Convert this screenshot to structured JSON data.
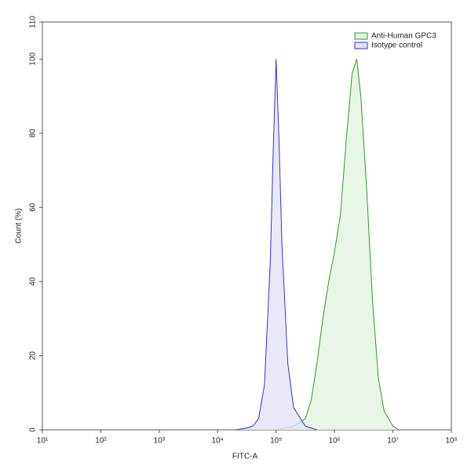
{
  "chart_data": {
    "type": "area",
    "xlabel": "FITC-A",
    "ylabel": "Count (%)",
    "xscale": "log",
    "xlim": [
      10,
      100000000
    ],
    "xticks": [
      {
        "value": 10,
        "label": "10¹"
      },
      {
        "value": 100,
        "label": "10²"
      },
      {
        "value": 1000,
        "label": "10³"
      },
      {
        "value": 10000,
        "label": "10⁴"
      },
      {
        "value": 100000,
        "label": "10⁵"
      },
      {
        "value": 1000000,
        "label": "10⁶"
      },
      {
        "value": 10000000,
        "label": "10⁷"
      },
      {
        "value": 100000000,
        "label": "10⁸"
      }
    ],
    "ylim": [
      0,
      110
    ],
    "yticks": [
      0,
      20,
      40,
      60,
      80,
      100,
      110
    ],
    "legend": "upper right",
    "series": [
      {
        "name": "Anti-Human GPC3",
        "color": "#2e9a2e",
        "fill": "#e3f3e1",
        "x": [
          100000,
          199526,
          316228,
          398107,
          501187,
          630957,
          794328,
          1000000,
          1258925,
          1584893,
          1995262,
          2398833,
          2818383,
          3548134,
          4466836,
          5623413,
          7079458,
          10000000,
          12589254
        ],
        "values": [
          0,
          1,
          3,
          8,
          18,
          30,
          40,
          48,
          58,
          78,
          96,
          100,
          90,
          65,
          35,
          14,
          5,
          1,
          0
        ]
      },
      {
        "name": "Isotype control",
        "color": "#3535c8",
        "fill": "#e2e2f8",
        "x": [
          19953,
          31623,
          39811,
          50119,
          63096,
          79433,
          89125,
          100000,
          112202,
          125893,
          158489,
          199526,
          316228,
          501187
        ],
        "values": [
          0,
          0.5,
          1,
          3,
          12,
          45,
          75,
          100,
          78,
          50,
          18,
          6,
          1,
          0
        ]
      }
    ]
  }
}
